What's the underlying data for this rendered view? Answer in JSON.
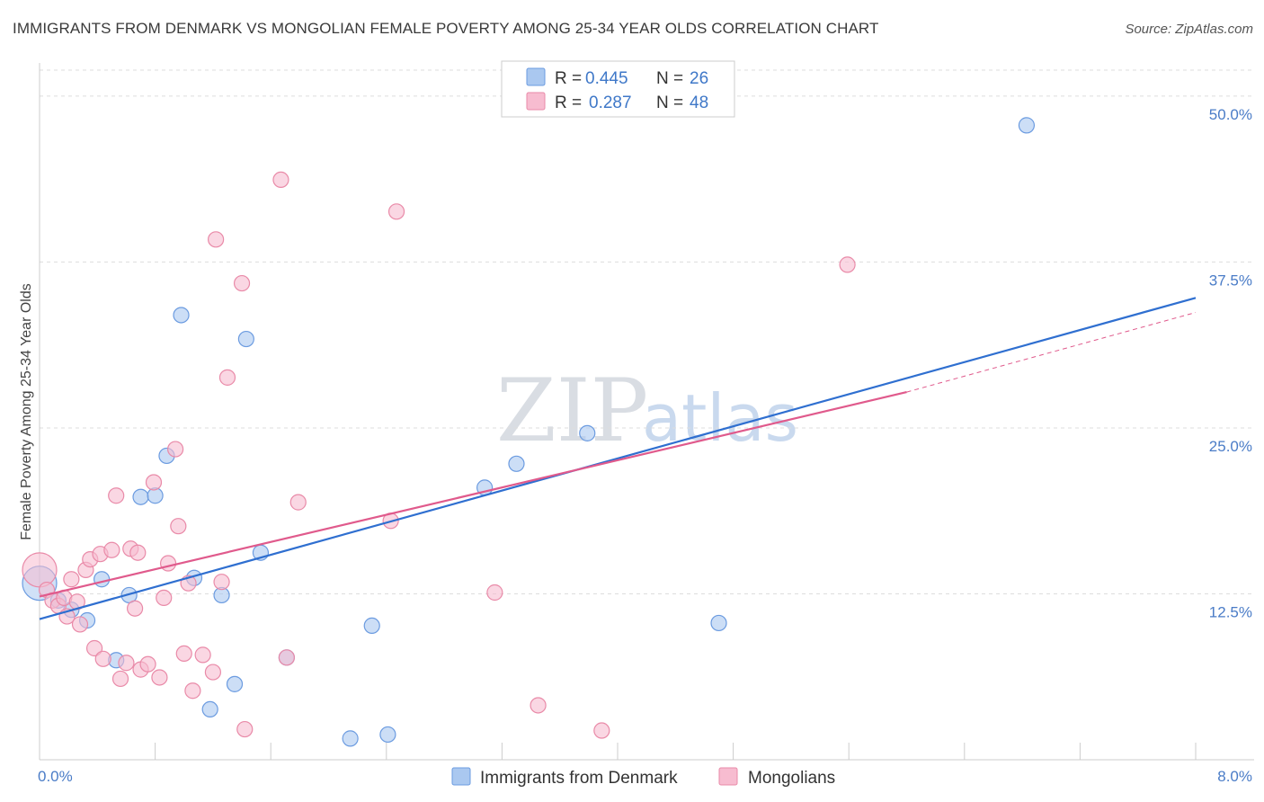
{
  "title": "IMMIGRANTS FROM DENMARK VS MONGOLIAN FEMALE POVERTY AMONG 25-34 YEAR OLDS CORRELATION CHART",
  "source": "Source: ZipAtlas.com",
  "watermark": {
    "zip": "ZIP",
    "atlas": "atlas"
  },
  "colors": {
    "blue_fill": "#aac8f0",
    "blue_stroke": "#6b9be0",
    "blue_line": "#2f6fd0",
    "pink_fill": "#f7bcd0",
    "pink_stroke": "#e98aa8",
    "pink_line": "#e05a8c",
    "grid": "#dddddd",
    "tick_text": "#4a7cc7"
  },
  "legend": {
    "rows": [
      {
        "r_label": "R =",
        "r_value": "0.445",
        "n_label": "N =",
        "n_value": "26"
      },
      {
        "r_label": "R =",
        "r_value": "0.287",
        "n_label": "N =",
        "n_value": "48"
      }
    ]
  },
  "chart_data": {
    "type": "scatter",
    "title": "IMMIGRANTS FROM DENMARK VS MONGOLIAN FEMALE POVERTY AMONG 25-34 YEAR OLDS CORRELATION CHART",
    "xlabel": "",
    "ylabel": "Female Poverty Among 25-34 Year Olds",
    "xlim": [
      0,
      8
    ],
    "ylim": [
      0,
      52.5
    ],
    "x_tick_labels": [
      "0.0%",
      "8.0%"
    ],
    "y_ticks": [
      12.5,
      25.0,
      37.5,
      50.0
    ],
    "y_tick_labels": [
      "12.5%",
      "25.0%",
      "37.5%",
      "50.0%"
    ],
    "grid": true,
    "legend_position": "top-center",
    "series": [
      {
        "name": "Immigrants from Denmark",
        "color": "blue",
        "R": 0.445,
        "N": 26,
        "trend": {
          "x": [
            0,
            8
          ],
          "y": [
            10.6,
            34.8
          ],
          "dashed_extension": false
        },
        "points": [
          {
            "x": 0.0,
            "y": 13.3,
            "big": true
          },
          {
            "x": 0.13,
            "y": 12.0
          },
          {
            "x": 0.22,
            "y": 11.3
          },
          {
            "x": 0.33,
            "y": 10.5
          },
          {
            "x": 0.43,
            "y": 13.6
          },
          {
            "x": 0.53,
            "y": 7.5
          },
          {
            "x": 0.62,
            "y": 12.4
          },
          {
            "x": 0.7,
            "y": 19.8
          },
          {
            "x": 0.8,
            "y": 19.9
          },
          {
            "x": 0.88,
            "y": 22.9
          },
          {
            "x": 0.98,
            "y": 33.5
          },
          {
            "x": 1.07,
            "y": 13.7
          },
          {
            "x": 1.18,
            "y": 3.8
          },
          {
            "x": 1.26,
            "y": 12.4
          },
          {
            "x": 1.35,
            "y": 5.7
          },
          {
            "x": 1.43,
            "y": 31.7
          },
          {
            "x": 1.53,
            "y": 15.6
          },
          {
            "x": 1.71,
            "y": 7.7
          },
          {
            "x": 2.15,
            "y": 1.6
          },
          {
            "x": 2.3,
            "y": 10.1
          },
          {
            "x": 2.41,
            "y": 1.9
          },
          {
            "x": 3.08,
            "y": 20.5
          },
          {
            "x": 3.3,
            "y": 22.3
          },
          {
            "x": 3.79,
            "y": 24.6
          },
          {
            "x": 4.7,
            "y": 10.3
          },
          {
            "x": 6.83,
            "y": 47.8
          }
        ]
      },
      {
        "name": "Mongolians",
        "color": "pink",
        "R": 0.287,
        "N": 48,
        "trend": {
          "x": [
            0,
            6.0
          ],
          "y": [
            12.3,
            27.7
          ],
          "dashed_extension": true,
          "dashed_to": {
            "x": 8.0,
            "y": 33.7
          }
        },
        "points": [
          {
            "x": 0.0,
            "y": 14.3,
            "big": true
          },
          {
            "x": 0.05,
            "y": 12.8
          },
          {
            "x": 0.09,
            "y": 12.0
          },
          {
            "x": 0.13,
            "y": 11.6
          },
          {
            "x": 0.17,
            "y": 12.2
          },
          {
            "x": 0.19,
            "y": 10.8
          },
          {
            "x": 0.22,
            "y": 13.6
          },
          {
            "x": 0.26,
            "y": 11.9
          },
          {
            "x": 0.28,
            "y": 10.2
          },
          {
            "x": 0.32,
            "y": 14.3
          },
          {
            "x": 0.35,
            "y": 15.1
          },
          {
            "x": 0.38,
            "y": 8.4
          },
          {
            "x": 0.42,
            "y": 15.5
          },
          {
            "x": 0.44,
            "y": 7.6
          },
          {
            "x": 0.5,
            "y": 15.8
          },
          {
            "x": 0.53,
            "y": 19.9
          },
          {
            "x": 0.56,
            "y": 6.1
          },
          {
            "x": 0.6,
            "y": 7.3
          },
          {
            "x": 0.63,
            "y": 15.9
          },
          {
            "x": 0.66,
            "y": 11.4
          },
          {
            "x": 0.68,
            "y": 15.6
          },
          {
            "x": 0.7,
            "y": 6.8
          },
          {
            "x": 0.75,
            "y": 7.2
          },
          {
            "x": 0.79,
            "y": 20.9
          },
          {
            "x": 0.83,
            "y": 6.2
          },
          {
            "x": 0.86,
            "y": 12.2
          },
          {
            "x": 0.89,
            "y": 14.8
          },
          {
            "x": 0.94,
            "y": 23.4
          },
          {
            "x": 0.96,
            "y": 17.6
          },
          {
            "x": 1.0,
            "y": 8.0
          },
          {
            "x": 1.03,
            "y": 13.3
          },
          {
            "x": 1.06,
            "y": 5.2
          },
          {
            "x": 1.13,
            "y": 7.9
          },
          {
            "x": 1.2,
            "y": 6.6
          },
          {
            "x": 1.22,
            "y": 39.2
          },
          {
            "x": 1.26,
            "y": 13.4
          },
          {
            "x": 1.3,
            "y": 28.8
          },
          {
            "x": 1.4,
            "y": 35.9
          },
          {
            "x": 1.42,
            "y": 2.3
          },
          {
            "x": 1.67,
            "y": 43.7
          },
          {
            "x": 1.71,
            "y": 7.7
          },
          {
            "x": 1.79,
            "y": 19.4
          },
          {
            "x": 2.43,
            "y": 18.0
          },
          {
            "x": 2.47,
            "y": 41.3
          },
          {
            "x": 3.15,
            "y": 12.6
          },
          {
            "x": 3.45,
            "y": 4.1
          },
          {
            "x": 3.89,
            "y": 2.2
          },
          {
            "x": 5.59,
            "y": 37.3
          }
        ]
      }
    ]
  }
}
